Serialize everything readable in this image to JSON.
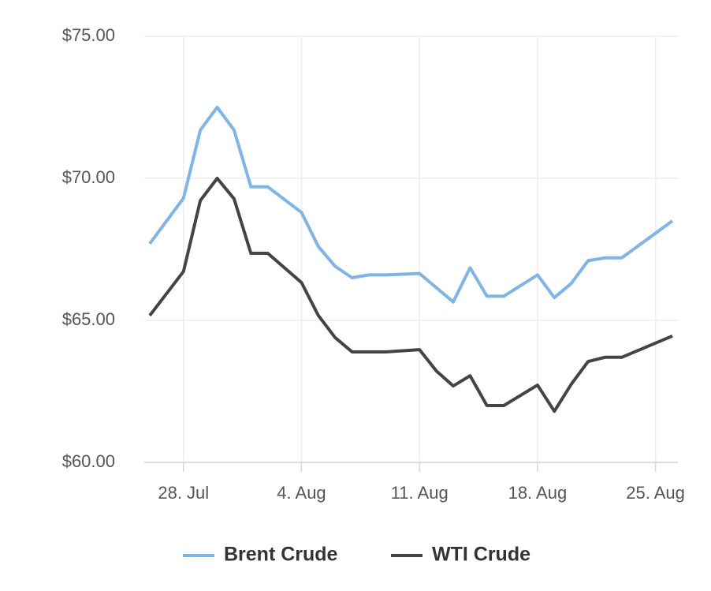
{
  "chart_data": {
    "type": "line",
    "x": [
      "26. Jul",
      "28. Jul",
      "29. Jul",
      "30. Jul",
      "31. Jul",
      "1. Aug",
      "2. Aug",
      "4. Aug",
      "5. Aug",
      "6. Aug",
      "7. Aug",
      "8. Aug",
      "9. Aug",
      "11. Aug",
      "12. Aug",
      "13. Aug",
      "14. Aug",
      "15. Aug",
      "16. Aug",
      "18. Aug",
      "19. Aug",
      "20. Aug",
      "21. Aug",
      "22. Aug",
      "23. Aug",
      "26. Aug"
    ],
    "series": [
      {
        "name": "Brent Crude",
        "color": "#7cb5ec",
        "values": [
          67.7,
          69.3,
          71.7,
          72.5,
          71.7,
          69.7,
          69.7,
          68.8,
          67.6,
          66.9,
          66.5,
          66.6,
          66.6,
          66.65,
          66.15,
          65.65,
          66.85,
          65.85,
          65.85,
          66.6,
          65.8,
          66.3,
          67.1,
          67.2,
          67.2,
          68.5
        ]
      },
      {
        "name": "WTI Crude",
        "color": "#434348",
        "values": [
          65.17,
          66.72,
          69.22,
          70.0,
          69.28,
          67.36,
          67.36,
          66.33,
          65.17,
          64.39,
          63.89,
          63.89,
          63.89,
          63.97,
          63.22,
          62.69,
          63.05,
          62.0,
          62.0,
          62.72,
          61.8,
          62.75,
          63.55,
          63.7,
          63.7,
          64.45
        ]
      }
    ],
    "xticks": [
      "28. Jul",
      "4. Aug",
      "11. Aug",
      "18. Aug",
      "25. Aug"
    ],
    "ylim": [
      60,
      75
    ],
    "yticks": [
      {
        "value": 60,
        "label": "$60.00"
      },
      {
        "value": 65,
        "label": "$65.00"
      },
      {
        "value": 70,
        "label": "$70.00"
      },
      {
        "value": 75,
        "label": "$75.00"
      }
    ],
    "grid": true
  }
}
